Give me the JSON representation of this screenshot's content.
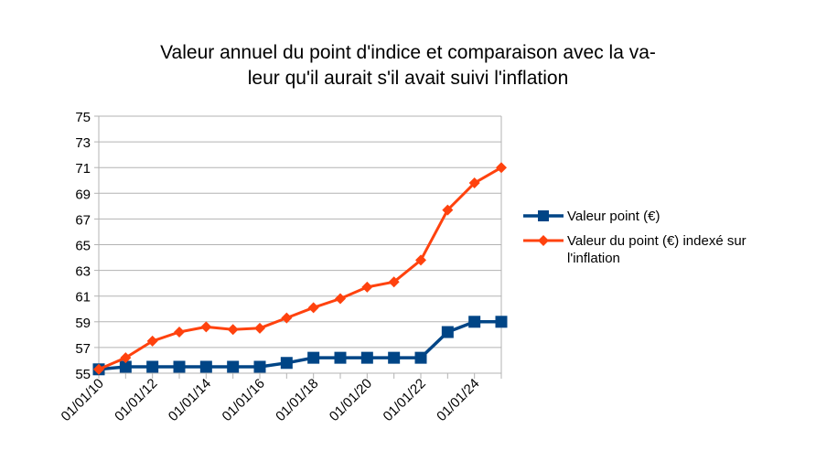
{
  "chart_data": {
    "type": "line",
    "title_lines": [
      "Valeur annuel du point d'indice et comparaison avec la va-",
      "leur qu'il aurait s'il avait suivi l'inflation"
    ],
    "xlabel": "",
    "ylabel": "",
    "x": [
      2010,
      2011,
      2012,
      2013,
      2014,
      2015,
      2016,
      2017,
      2018,
      2019,
      2020,
      2021,
      2022,
      2023,
      2024,
      2025
    ],
    "x_tick_values": [
      2010,
      2012,
      2014,
      2016,
      2018,
      2020,
      2022,
      2024
    ],
    "x_tick_labels": [
      "01/01/10",
      "01/01/12",
      "01/01/14",
      "01/01/16",
      "01/01/18",
      "01/01/20",
      "01/01/22",
      "01/01/24"
    ],
    "xlim": [
      2010,
      2025
    ],
    "ylim": [
      55,
      75
    ],
    "y_ticks": [
      55,
      57,
      59,
      61,
      63,
      65,
      67,
      69,
      71,
      73,
      75
    ],
    "grid": true,
    "legend_position": "right",
    "series": [
      {
        "name": "Valeur point (€)",
        "color": "#004586",
        "marker": "square",
        "values": [
          55.3,
          55.5,
          55.5,
          55.5,
          55.5,
          55.5,
          55.5,
          55.8,
          56.2,
          56.2,
          56.2,
          56.2,
          56.2,
          58.2,
          59.0,
          59.0
        ]
      },
      {
        "name_lines": [
          "Valeur du point (€) indexé sur",
          "l'inflation"
        ],
        "color": "#ff420e",
        "marker": "diamond",
        "values": [
          55.3,
          56.2,
          57.5,
          58.2,
          58.6,
          58.4,
          58.5,
          59.3,
          60.1,
          60.8,
          61.7,
          62.1,
          63.8,
          67.7,
          69.8,
          71.0
        ]
      }
    ]
  }
}
